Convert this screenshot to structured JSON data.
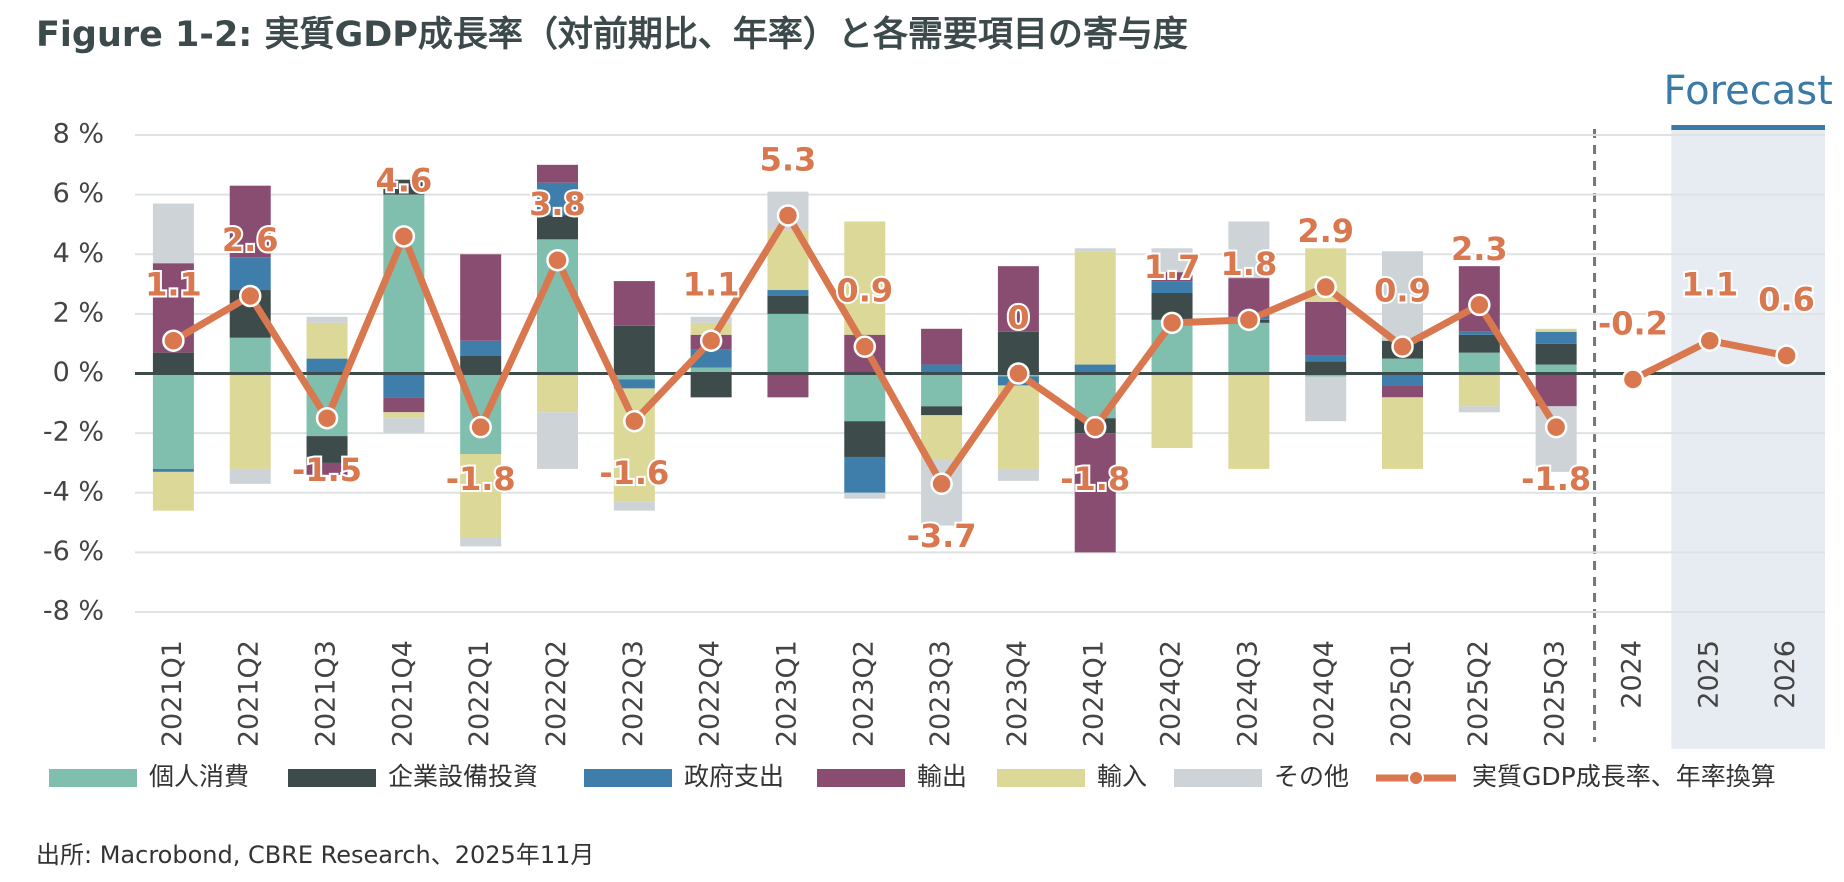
{
  "chart_data": {
    "type": "stacked_bar_line",
    "title": "Figure 1-2: 実質GDP成長率（対前期比、年率）と各需要項目の寄与度",
    "source": "出所: Macrobond, CBRE Research、2025年11月",
    "forecast_label": "Forecast",
    "categories": [
      "2021Q1",
      "2021Q2",
      "2021Q3",
      "2021Q4",
      "2022Q1",
      "2022Q2",
      "2022Q3",
      "2022Q4",
      "2023Q1",
      "2023Q2",
      "2023Q3",
      "2023Q4",
      "2024Q1",
      "2024Q2",
      "2024Q3",
      "2024Q4",
      "2025Q1",
      "2025Q2",
      "2025Q3",
      "2024",
      "2025",
      "2026"
    ],
    "ylim": [
      -8,
      8
    ],
    "yticks": [
      {
        "value": -8,
        "label": "-8 %"
      },
      {
        "value": -6,
        "label": "-6 %"
      },
      {
        "value": -4,
        "label": "-4 %"
      },
      {
        "value": -2,
        "label": "-2 %"
      },
      {
        "value": 0,
        "label": "0 %"
      },
      {
        "value": 2,
        "label": "2 %"
      },
      {
        "value": 4,
        "label": "4 %"
      },
      {
        "value": 6,
        "label": "6 %"
      },
      {
        "value": 8,
        "label": "8 %"
      }
    ],
    "grid": true,
    "series": [
      {
        "name": "個人消費",
        "color": "#80bfae",
        "values": [
          -3.2,
          1.2,
          -2.1,
          6.0,
          -2.7,
          4.5,
          -0.2,
          0.2,
          2.0,
          -1.6,
          -1.1,
          -0.1,
          -1.5,
          1.8,
          1.7,
          -0.1,
          0.5,
          0.7,
          0.3,
          null,
          null,
          null
        ]
      },
      {
        "name": "企業設備投資",
        "color": "#3e4b4b",
        "values": [
          0.7,
          1.6,
          -0.9,
          0.5,
          0.6,
          0.8,
          1.6,
          -0.8,
          0.6,
          -1.2,
          -0.3,
          1.4,
          -0.5,
          0.9,
          0.1,
          0.4,
          0.6,
          0.6,
          0.7,
          null,
          null,
          null
        ]
      },
      {
        "name": "政府支出",
        "color": "#3f7eaa",
        "values": [
          -0.1,
          1.1,
          0.5,
          -0.8,
          0.5,
          1.1,
          -0.3,
          0.6,
          0.2,
          -1.2,
          0.3,
          -0.3,
          0.3,
          0.4,
          0.1,
          0.2,
          -0.4,
          0.1,
          0.4,
          null,
          null,
          null
        ]
      },
      {
        "name": "輸出",
        "color": "#8a4d72",
        "values": [
          3.0,
          2.4,
          -0.4,
          -0.5,
          2.9,
          0.6,
          1.5,
          0.5,
          -0.8,
          1.3,
          1.2,
          2.2,
          -4.0,
          0.3,
          1.3,
          1.8,
          -0.4,
          2.2,
          -1.1,
          null,
          null,
          null
        ]
      },
      {
        "name": "輸入",
        "color": "#dcd898",
        "values": [
          -1.3,
          -3.2,
          1.2,
          -0.2,
          -2.8,
          -1.3,
          -3.8,
          0.4,
          2.0,
          3.8,
          -1.5,
          -2.8,
          3.8,
          -2.5,
          -3.2,
          1.8,
          -2.4,
          -1.1,
          0.1,
          null,
          null,
          null
        ]
      },
      {
        "name": "その他",
        "color": "#cdd3d6",
        "values": [
          2.0,
          -0.5,
          0.2,
          -0.5,
          -0.3,
          -1.9,
          -0.3,
          0.2,
          1.3,
          -0.2,
          -2.2,
          -0.4,
          0.1,
          0.8,
          1.9,
          -1.5,
          3.0,
          -0.2,
          -2.2,
          null,
          null,
          null
        ]
      },
      {
        "name": "実質GDP成長率、年率換算",
        "color": "#d9774f",
        "kind": "line",
        "values": [
          1.1,
          2.6,
          -1.5,
          4.6,
          -1.8,
          3.8,
          -1.6,
          1.1,
          5.3,
          0.9,
          -3.7,
          0,
          -1.8,
          1.7,
          1.8,
          2.9,
          0.9,
          2.3,
          -1.8,
          -0.2,
          1.1,
          0.6
        ]
      }
    ]
  }
}
